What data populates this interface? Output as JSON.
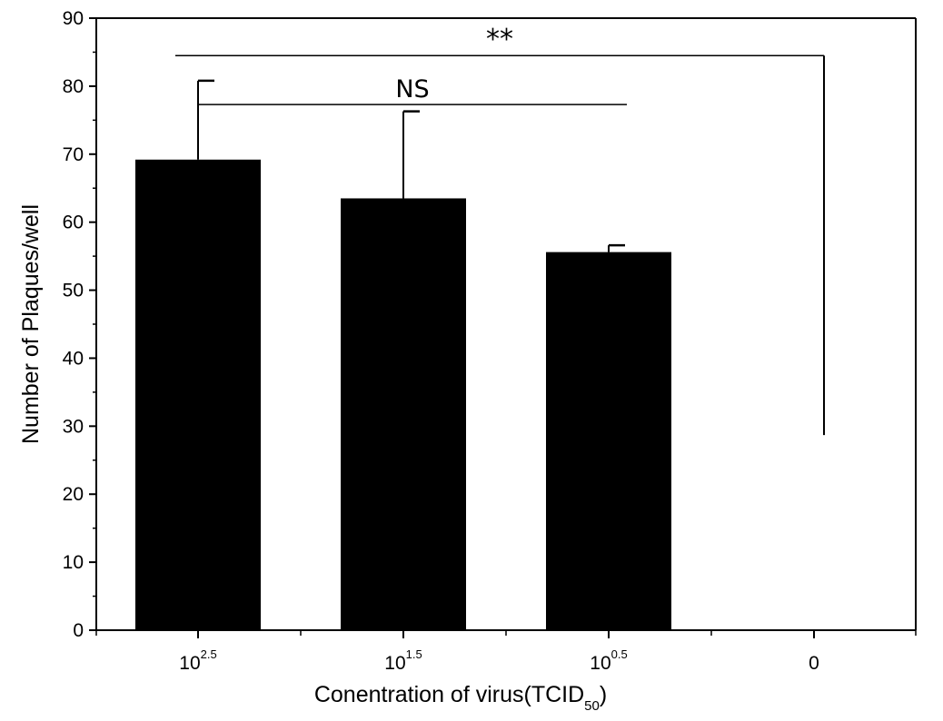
{
  "chart_data": {
    "type": "bar",
    "title": "",
    "ylabel": "Number of Plaques/well",
    "xlabel": {
      "main": "Conentration of virus(TCID",
      "subscript": "50",
      "close": ")"
    },
    "ylim": [
      0,
      90
    ],
    "yticks": [
      0,
      10,
      20,
      30,
      40,
      50,
      60,
      70,
      80,
      90
    ],
    "categories": [
      {
        "base": "10",
        "exponent": "2.5",
        "display": "10^2.5"
      },
      {
        "base": "10",
        "exponent": "1.5",
        "display": "10^1.5"
      },
      {
        "base": "10",
        "exponent": "0.5",
        "display": "10^0.5"
      },
      {
        "base": "0",
        "exponent": "",
        "display": "0"
      }
    ],
    "series": [
      {
        "values": [
          69.2,
          63.5,
          55.6,
          0
        ],
        "error": [
          11.6,
          12.8,
          1.0,
          0
        ],
        "color": "#000000"
      }
    ],
    "annotations": [
      {
        "label": "NS",
        "from_category": 0,
        "to_category": 2,
        "y": 77.3
      },
      {
        "label": "**",
        "from_category": 0,
        "to_category": 3,
        "y": 84.5,
        "drop_to": 28.7
      }
    ],
    "grid": false,
    "legend": "none"
  }
}
